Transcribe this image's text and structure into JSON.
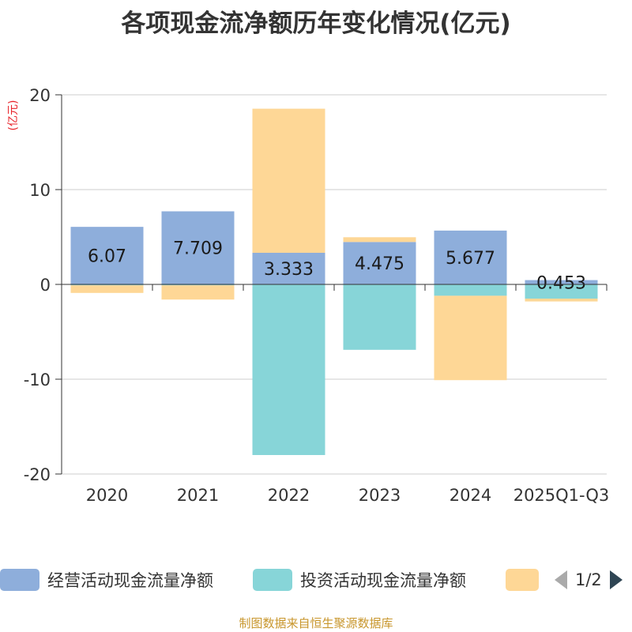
{
  "chart_data": {
    "type": "bar",
    "stacked": true,
    "title": "各项现金流净额历年变化情况(亿元)",
    "ylabel": "(亿元)",
    "categories": [
      "2020",
      "2021",
      "2022",
      "2023",
      "2024",
      "2025Q1-Q3"
    ],
    "ylim": [
      -20,
      20
    ],
    "yticks": [
      20,
      10,
      0,
      -10,
      -20
    ],
    "grid": true,
    "series": [
      {
        "name": "经营活动现金流量净额",
        "color": "#8eaedb",
        "values": [
          6.07,
          7.709,
          3.333,
          4.475,
          5.677,
          0.453
        ],
        "labels": [
          "6.07",
          "7.709",
          "3.333",
          "4.475",
          "5.677",
          "0.453"
        ]
      },
      {
        "name": "投资活动现金流量净额",
        "color": "#87d5d8",
        "values": [
          -0.1,
          -0.1,
          -18.0,
          -6.9,
          -1.2,
          -1.5
        ]
      },
      {
        "name": "",
        "color": "#fed796",
        "values": [
          -0.8,
          -1.5,
          15.2,
          0.5,
          -8.9,
          -0.3
        ]
      }
    ]
  },
  "legend": {
    "page": "1/2"
  },
  "source": "制图数据来自恒生聚源数据库"
}
